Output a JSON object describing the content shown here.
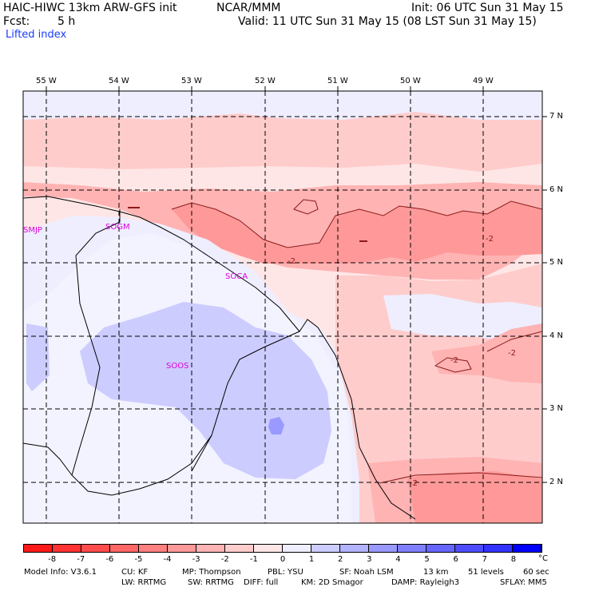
{
  "header": {
    "model": "HAIC-HIWC 13km ARW-GFS init",
    "org": "NCAR/MMM",
    "init": "Init: 06 UTC Sun 31 May 15",
    "fcst_label": "Fcst:",
    "fcst_value": "5 h",
    "valid": "Valid: 11 UTC Sun 31 May 15 (08 LST Sun 31 May 15)",
    "field": "Lifted index"
  },
  "map": {
    "lon_labels": [
      "55 W",
      "54 W",
      "53 W",
      "52 W",
      "51 W",
      "50 W",
      "49 W"
    ],
    "lat_labels": [
      "7 N",
      "6 N",
      "5 N",
      "4 N",
      "3 N",
      "2 N"
    ],
    "stations": [
      "SMJP",
      "SOGM",
      "SOCA",
      "SOOS"
    ],
    "contour_labels": [
      "-2",
      "-2",
      "-2",
      "-2",
      "-2"
    ]
  },
  "colorbar": {
    "labels": [
      "-8",
      "-7",
      "-6",
      "-5",
      "-4",
      "-3",
      "-2",
      "-1",
      "0",
      "1",
      "2",
      "3",
      "4",
      "5",
      "6",
      "7",
      "8"
    ],
    "unit": "°C",
    "colors": [
      "#ff1a1a",
      "#ff3333",
      "#ff4d4d",
      "#ff6666",
      "#ff8080",
      "#ff9999",
      "#ffb3b3",
      "#ffcccc",
      "#ffe6e6",
      "#eeeeff",
      "#ccccff",
      "#b3b3ff",
      "#9999ff",
      "#7f7fff",
      "#6666ff",
      "#4d4dff",
      "#3333ff",
      "#0000ff"
    ]
  },
  "footer": {
    "line1": [
      "Model Info: V3.6.1",
      "CU: KF",
      "MP: Thompson",
      "PBL: YSU",
      "SF: Noah LSM",
      "13 km",
      "51 levels",
      "60 sec"
    ],
    "line2": [
      "LW: RRTMG",
      "SW: RRTMG",
      "DIFF: full",
      "KM: 2D Smagor",
      "DAMP: Rayleigh3",
      "SFLAY: MM5"
    ]
  }
}
